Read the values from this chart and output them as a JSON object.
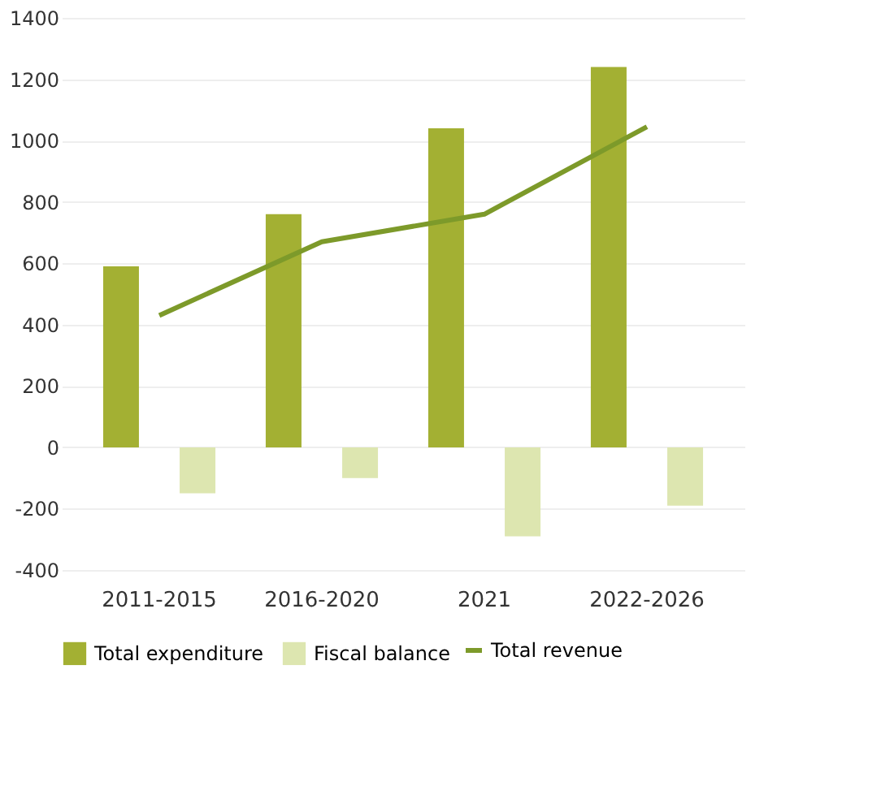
{
  "chart_data": {
    "type": "bar",
    "categories": [
      "2011-2015",
      "2016-2020",
      "2021",
      "2022-2026"
    ],
    "series": [
      {
        "name": "Total expenditure",
        "color": "#a3b033",
        "values": [
          590,
          760,
          1040,
          1240
        ]
      },
      {
        "name": "Fiscal balance",
        "color": "#dde6b0",
        "values": [
          -150,
          -100,
          -290,
          -190
        ]
      },
      {
        "name": "Total revenue",
        "type": "line",
        "color": "#7d9a2a",
        "values": [
          430,
          670,
          760,
          1045
        ]
      }
    ],
    "ylim": [
      -400,
      1400
    ],
    "yticks": [
      -400,
      -200,
      0,
      200,
      400,
      600,
      800,
      1000,
      1200,
      1400
    ],
    "grid": "y",
    "legend": "bottom"
  }
}
